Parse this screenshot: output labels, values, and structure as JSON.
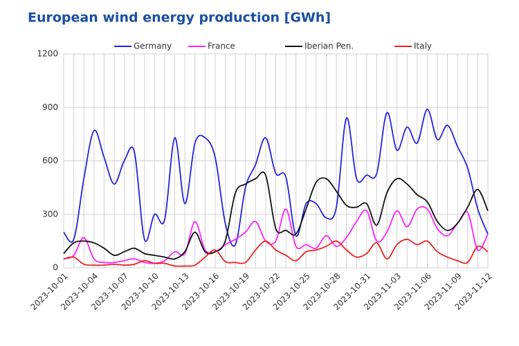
{
  "chart_data": {
    "type": "line",
    "title": "European wind energy production [GWh]",
    "x": [
      "2023-10-01",
      "2023-10-02",
      "2023-10-03",
      "2023-10-04",
      "2023-10-05",
      "2023-10-06",
      "2023-10-07",
      "2023-10-08",
      "2023-10-09",
      "2023-10-10",
      "2023-10-11",
      "2023-10-12",
      "2023-10-13",
      "2023-10-14",
      "2023-10-15",
      "2023-10-16",
      "2023-10-17",
      "2023-10-18",
      "2023-10-19",
      "2023-10-20",
      "2023-10-21",
      "2023-10-22",
      "2023-10-23",
      "2023-10-24",
      "2023-10-25",
      "2023-10-26",
      "2023-10-27",
      "2023-10-28",
      "2023-10-29",
      "2023-10-30",
      "2023-10-31",
      "2023-11-01",
      "2023-11-02",
      "2023-11-03",
      "2023-11-04",
      "2023-11-05",
      "2023-11-06",
      "2023-11-07",
      "2023-11-08",
      "2023-11-09",
      "2023-11-10",
      "2023-11-11",
      "2023-11-12"
    ],
    "xticks": [
      "2023-10-01",
      "2023-10-04",
      "2023-10-07",
      "2023-10-10",
      "2023-10-13",
      "2023-10-16",
      "2023-10-19",
      "2023-10-22",
      "2023-10-25",
      "2023-10-28",
      "2023-10-31",
      "2023-11-03",
      "2023-11-06",
      "2023-11-09",
      "2023-11-12"
    ],
    "series": [
      {
        "name": "Germany",
        "color": "#2222dd",
        "values": [
          200,
          160,
          500,
          770,
          620,
          470,
          600,
          650,
          160,
          300,
          270,
          730,
          360,
          700,
          730,
          620,
          250,
          130,
          450,
          580,
          730,
          530,
          510,
          180,
          360,
          360,
          280,
          340,
          840,
          500,
          520,
          530,
          870,
          660,
          790,
          700,
          890,
          720,
          800,
          680,
          560,
          330,
          190
        ]
      },
      {
        "name": "France",
        "color": "#ff22ff",
        "values": [
          50,
          70,
          170,
          50,
          30,
          30,
          40,
          50,
          30,
          25,
          40,
          90,
          80,
          260,
          100,
          90,
          130,
          160,
          200,
          260,
          150,
          150,
          330,
          120,
          130,
          110,
          180,
          120,
          170,
          260,
          320,
          150,
          200,
          320,
          230,
          330,
          330,
          220,
          180,
          250,
          310,
          100,
          190
        ]
      },
      {
        "name": "Iberian Pen.",
        "color": "#111111",
        "values": [
          80,
          140,
          150,
          140,
          110,
          70,
          90,
          110,
          80,
          70,
          60,
          50,
          90,
          200,
          90,
          90,
          150,
          420,
          470,
          500,
          520,
          220,
          210,
          190,
          330,
          480,
          500,
          430,
          350,
          340,
          360,
          240,
          420,
          500,
          470,
          410,
          370,
          260,
          210,
          250,
          340,
          440,
          320
        ]
      },
      {
        "name": "Italy",
        "color": "#ee2222",
        "values": [
          50,
          60,
          20,
          15,
          15,
          20,
          15,
          20,
          40,
          25,
          25,
          10,
          10,
          15,
          60,
          100,
          35,
          30,
          30,
          100,
          150,
          100,
          70,
          40,
          90,
          100,
          120,
          150,
          100,
          60,
          80,
          140,
          50,
          130,
          160,
          130,
          150,
          90,
          60,
          40,
          30,
          120,
          90
        ]
      }
    ],
    "ylim": [
      0,
      1200
    ],
    "yticks": [
      0,
      300,
      600,
      900,
      1200
    ],
    "grid": true,
    "legend": "top"
  }
}
